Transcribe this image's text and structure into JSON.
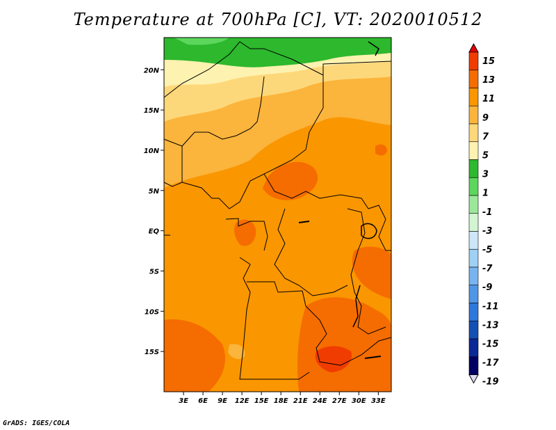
{
  "title": "Temperature at 700hPa [C], VT: 2020010512",
  "credit": "GrADS: IGES/COLA",
  "map": {
    "projection": "latlon",
    "lon_range": [
      0,
      35
    ],
    "lat_range": [
      -20,
      24
    ],
    "lat_ticks": [
      {
        "value": 20,
        "label": "20N"
      },
      {
        "value": 15,
        "label": "15N"
      },
      {
        "value": 10,
        "label": "10N"
      },
      {
        "value": 5,
        "label": "5N"
      },
      {
        "value": 0,
        "label": "EQ"
      },
      {
        "value": -5,
        "label": "5S"
      },
      {
        "value": -10,
        "label": "10S"
      },
      {
        "value": -15,
        "label": "15S"
      }
    ],
    "lon_ticks": [
      {
        "value": 3,
        "label": "3E"
      },
      {
        "value": 6,
        "label": "6E"
      },
      {
        "value": 9,
        "label": "9E"
      },
      {
        "value": 12,
        "label": "12E"
      },
      {
        "value": 15,
        "label": "15E"
      },
      {
        "value": 18,
        "label": "18E"
      },
      {
        "value": 21,
        "label": "21E"
      },
      {
        "value": 24,
        "label": "24E"
      },
      {
        "value": 27,
        "label": "27E"
      },
      {
        "value": 30,
        "label": "30E"
      },
      {
        "value": 33,
        "label": "33E"
      }
    ]
  },
  "colorbar": {
    "labels": [
      "15",
      "13",
      "11",
      "9",
      "7",
      "5",
      "3",
      "1",
      "-1",
      "-3",
      "-5",
      "-7",
      "-9",
      "-11",
      "-13",
      "-15",
      "-17",
      "-19"
    ],
    "colors": [
      "#e60000",
      "#f03c00",
      "#f56c00",
      "#fa9600",
      "#fbb43c",
      "#fdd87a",
      "#fef2b0",
      "#2db82d",
      "#5cd65c",
      "#9be89b",
      "#d2f5d2",
      "#cde6fa",
      "#9fd0f5",
      "#78b4f0",
      "#5096e6",
      "#2d78dc",
      "#1450b4",
      "#0a2896",
      "#000064",
      "#dcdcf0"
    ],
    "top_arrow_color": "#e60000",
    "bottom_arrow_color": "#dcdcf0"
  }
}
